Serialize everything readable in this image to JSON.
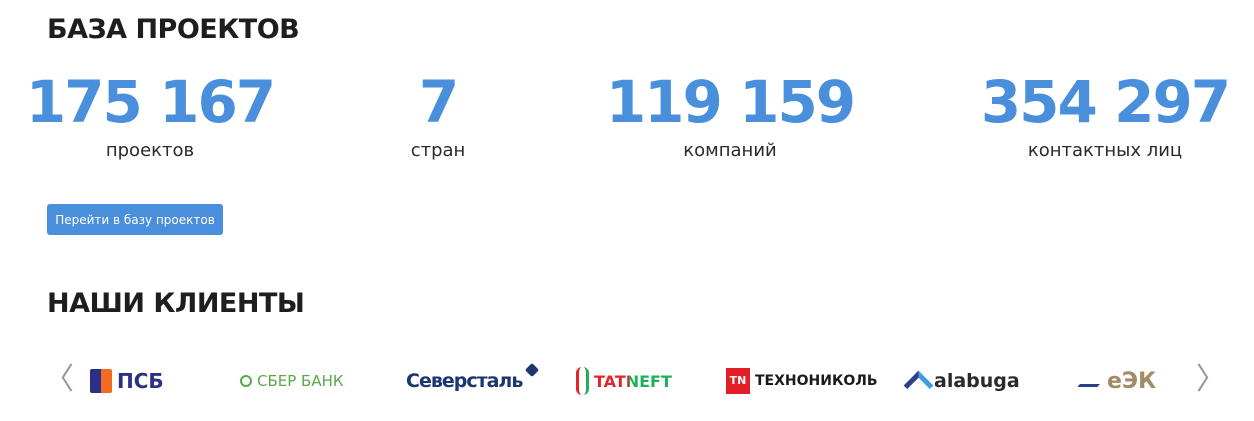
{
  "projects_section": {
    "title": "БАЗА ПРОЕКТОВ",
    "stats": [
      {
        "value": "175 167",
        "label": "проектов"
      },
      {
        "value": "7",
        "label": "стран"
      },
      {
        "value": "119 159",
        "label": "компаний"
      },
      {
        "value": "354 297",
        "label": "контактных лиц"
      }
    ],
    "button_label": "Перейти в базу проектов",
    "accent_color": "#4a8fdc"
  },
  "clients_section": {
    "title": "НАШИ КЛИЕНТЫ",
    "prev_icon": "chevron-left-icon",
    "next_icon": "chevron-right-icon",
    "logos": [
      {
        "name": "ПСБ",
        "color": "#2b2f86"
      },
      {
        "name": "СБЕР БАНК",
        "color": "#5aa84a"
      },
      {
        "name": "Северсталь",
        "color": "#1c3672"
      },
      {
        "name": "TATNEFT",
        "color": "#e0262b"
      },
      {
        "name": "ТЕХНОНИКОЛЬ",
        "color": "#1a1a1a"
      },
      {
        "name": "alabuga",
        "color": "#2a2a2a"
      },
      {
        "name": "еЭК",
        "color": "#a08d65"
      }
    ]
  }
}
